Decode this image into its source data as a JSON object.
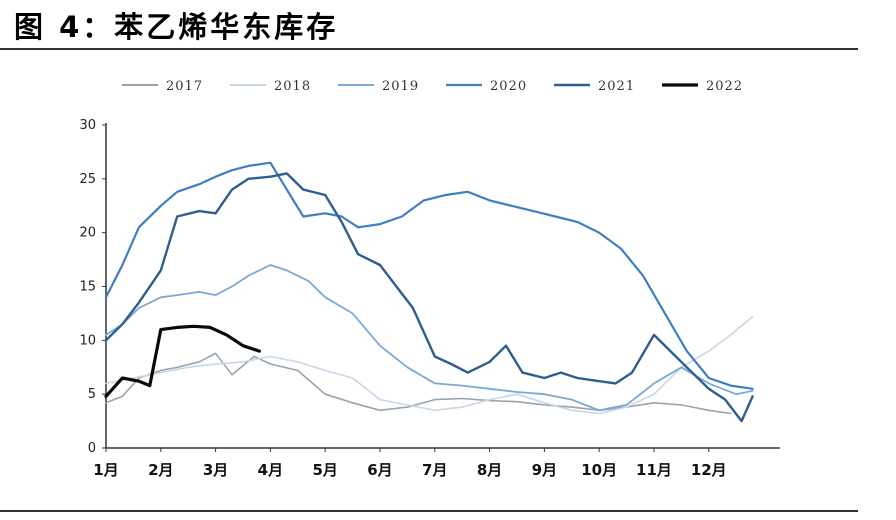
{
  "figure": {
    "title": "图 4：苯乙烯华东库存"
  },
  "chart_data": {
    "type": "line",
    "title": "",
    "xlabel": "",
    "ylabel": "",
    "x_ticks": [
      "1月",
      "2月",
      "3月",
      "4月",
      "5月",
      "6月",
      "7月",
      "8月",
      "9月",
      "10月",
      "11月",
      "12月"
    ],
    "y_ticks": [
      "0",
      "5",
      "10",
      "15",
      "20",
      "25",
      "30"
    ],
    "ylim": [
      0,
      30
    ],
    "xlim": [
      1,
      13.3
    ],
    "legend_position": "top",
    "grid": false,
    "series": [
      {
        "name": "2017",
        "color": "#9aa3ab",
        "width": 1.6,
        "x": [
          1,
          1.3,
          1.6,
          2,
          2.3,
          2.7,
          3,
          3.3,
          3.7,
          4,
          4.5,
          5,
          5.5,
          6,
          6.5,
          7,
          7.5,
          8,
          8.5,
          9,
          9.5,
          10,
          10.5,
          11,
          11.5,
          12,
          12.4
        ],
        "y": [
          4.2,
          4.8,
          6.5,
          7.2,
          7.5,
          8.0,
          8.8,
          6.8,
          8.5,
          7.8,
          7.2,
          5.0,
          4.2,
          3.5,
          3.8,
          4.5,
          4.6,
          4.4,
          4.3,
          4.0,
          3.8,
          3.5,
          3.8,
          4.2,
          4.0,
          3.5,
          3.2
        ]
      },
      {
        "name": "2018",
        "color": "#c5d7e8",
        "width": 1.6,
        "x": [
          1,
          1.5,
          2,
          2.5,
          3,
          3.5,
          4,
          4.5,
          5,
          5.5,
          6,
          6.5,
          7,
          7.5,
          8,
          8.5,
          9,
          9.5,
          10,
          10.5,
          11,
          11.5,
          12,
          12.4,
          12.8
        ],
        "y": [
          6.0,
          6.5,
          7.0,
          7.5,
          7.8,
          8.0,
          8.5,
          8.0,
          7.2,
          6.5,
          4.5,
          4.0,
          3.5,
          3.8,
          4.5,
          5.0,
          4.2,
          3.5,
          3.2,
          3.8,
          5.0,
          7.5,
          9.0,
          10.5,
          12.2
        ]
      },
      {
        "name": "2019",
        "color": "#7aa9d6",
        "width": 1.8,
        "x": [
          1,
          1.3,
          1.6,
          2,
          2.3,
          2.7,
          3,
          3.3,
          3.6,
          4,
          4.3,
          4.7,
          5,
          5.5,
          6,
          6.5,
          7,
          7.5,
          8,
          8.5,
          9,
          9.5,
          10,
          10.5,
          11,
          11.5,
          12,
          12.5,
          12.8
        ],
        "y": [
          10.5,
          11.5,
          13.0,
          14.0,
          14.2,
          14.5,
          14.2,
          15.0,
          16.0,
          17.0,
          16.5,
          15.5,
          14.0,
          12.5,
          9.5,
          7.5,
          6.0,
          5.8,
          5.5,
          5.2,
          5.0,
          4.5,
          3.5,
          4.0,
          6.0,
          7.5,
          6.0,
          5.0,
          5.3
        ]
      },
      {
        "name": "2020",
        "color": "#3f7fc1",
        "width": 2.2,
        "x": [
          1,
          1.3,
          1.6,
          2,
          2.3,
          2.7,
          3,
          3.3,
          3.6,
          4,
          4.3,
          4.6,
          5,
          5.3,
          5.6,
          6,
          6.4,
          6.8,
          7.2,
          7.6,
          8,
          8.4,
          8.8,
          9.2,
          9.6,
          10,
          10.4,
          10.8,
          11.2,
          11.6,
          12,
          12.4,
          12.8
        ],
        "y": [
          14.0,
          17.0,
          20.5,
          22.5,
          23.8,
          24.5,
          25.2,
          25.8,
          26.2,
          26.5,
          24.0,
          21.5,
          21.8,
          21.5,
          20.5,
          20.8,
          21.5,
          23.0,
          23.5,
          23.8,
          23.0,
          22.5,
          22.0,
          21.5,
          21.0,
          20.0,
          18.5,
          16.0,
          12.5,
          9.0,
          6.5,
          5.8,
          5.5
        ]
      },
      {
        "name": "2021",
        "color": "#2e5e8e",
        "width": 2.4,
        "x": [
          1,
          1.3,
          1.6,
          2,
          2.3,
          2.7,
          3,
          3.3,
          3.6,
          4,
          4.3,
          4.6,
          5,
          5.3,
          5.6,
          6,
          6.3,
          6.6,
          7,
          7.3,
          7.6,
          8,
          8.3,
          8.6,
          9,
          9.3,
          9.6,
          10,
          10.3,
          10.6,
          11,
          11.3,
          11.6,
          12,
          12.3,
          12.6,
          12.8
        ],
        "y": [
          10.0,
          11.5,
          13.5,
          16.5,
          21.5,
          22.0,
          21.8,
          24.0,
          25.0,
          25.2,
          25.5,
          24.0,
          23.5,
          21.0,
          18.0,
          17.0,
          15.0,
          13.0,
          8.5,
          7.8,
          7.0,
          8.0,
          9.5,
          7.0,
          6.5,
          7.0,
          6.5,
          6.2,
          6.0,
          7.0,
          10.5,
          9.0,
          7.5,
          5.5,
          4.5,
          2.5,
          4.8
        ]
      },
      {
        "name": "2022",
        "color": "#0a0a0a",
        "width": 3.2,
        "x": [
          1,
          1.3,
          1.6,
          1.8,
          2,
          2.3,
          2.6,
          2.9,
          3.2,
          3.5,
          3.8
        ],
        "y": [
          4.8,
          6.5,
          6.2,
          5.8,
          11.0,
          11.2,
          11.3,
          11.2,
          10.5,
          9.5,
          9.0
        ]
      }
    ]
  }
}
